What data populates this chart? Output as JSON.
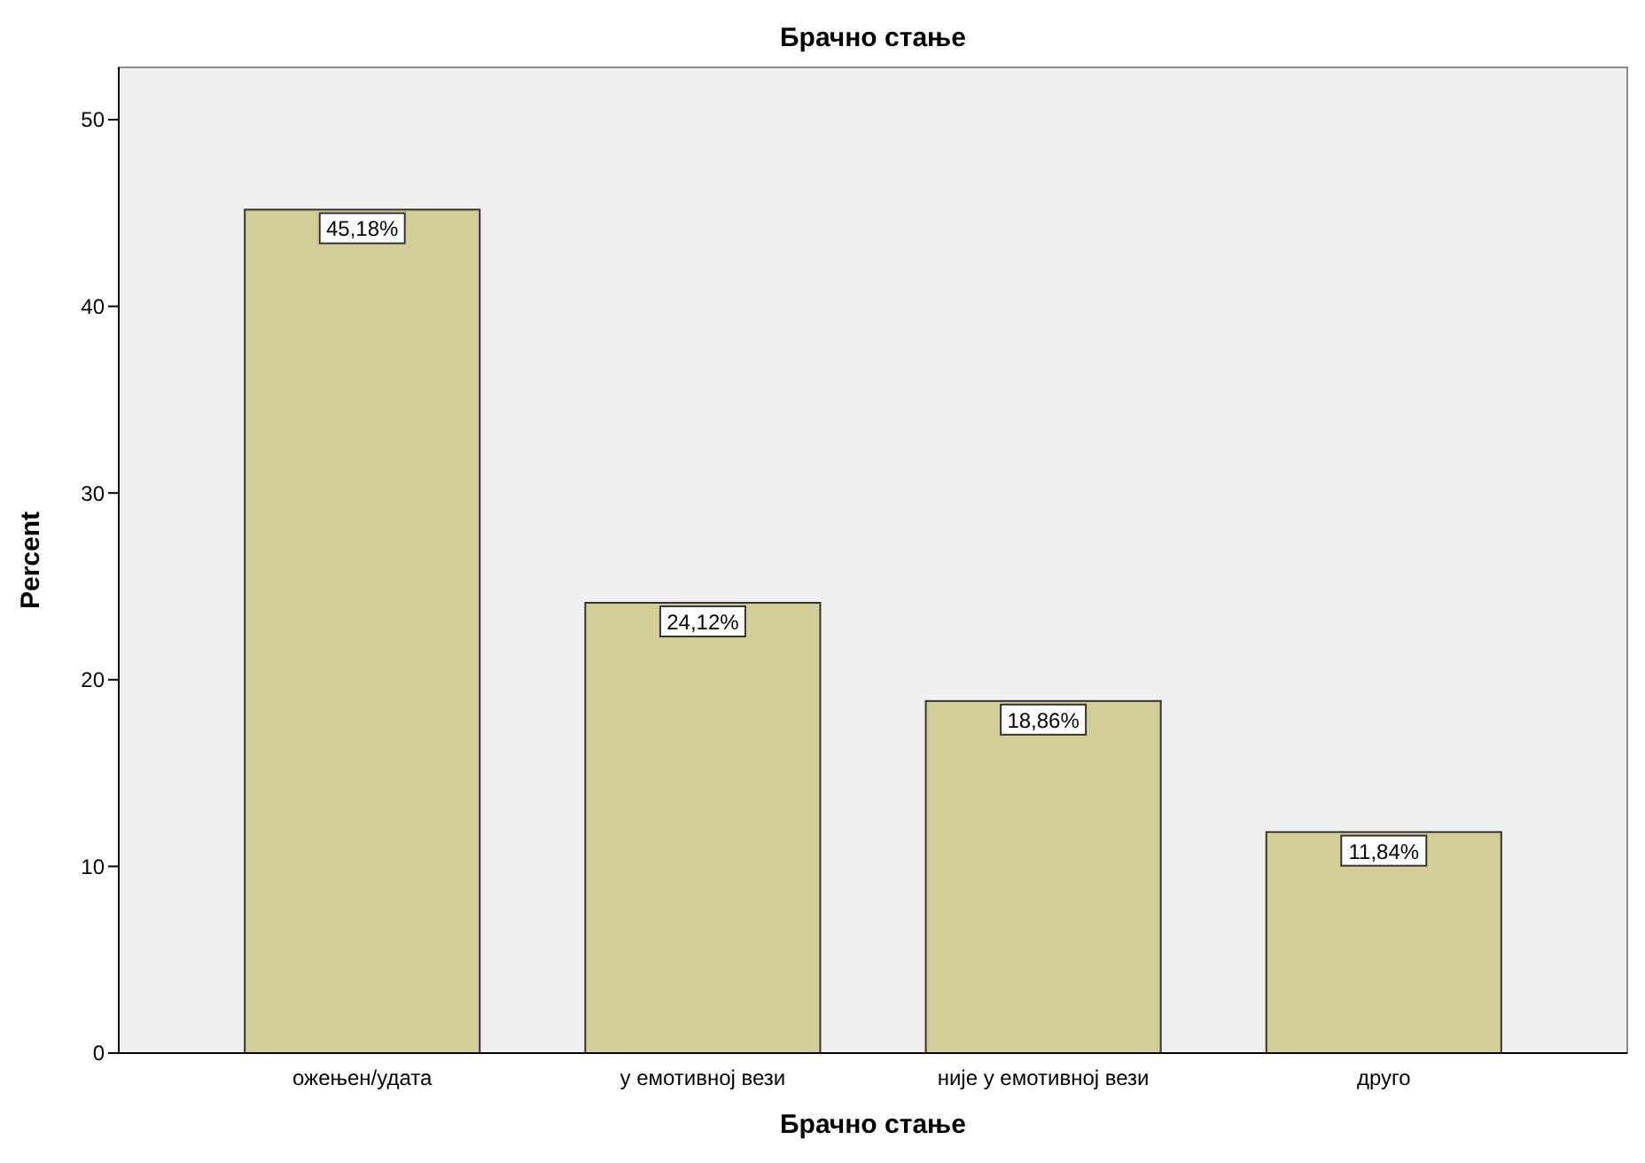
{
  "chart_data": {
    "type": "bar",
    "title": "Брачно стање",
    "xlabel": "Брачно стање",
    "ylabel": "Percent",
    "categories": [
      "ожењен/удата",
      "у емотивној вези",
      "није у емотивној вези",
      "друго"
    ],
    "values": [
      45.18,
      24.12,
      18.86,
      11.84
    ],
    "value_labels": [
      "45,18%",
      "24,12%",
      "18,86%",
      "11,84%"
    ],
    "color": "#d3ce97",
    "ylim": [
      0,
      52.8
    ],
    "yticks": [
      0,
      10,
      20,
      30,
      40,
      50
    ],
    "grid": false
  }
}
